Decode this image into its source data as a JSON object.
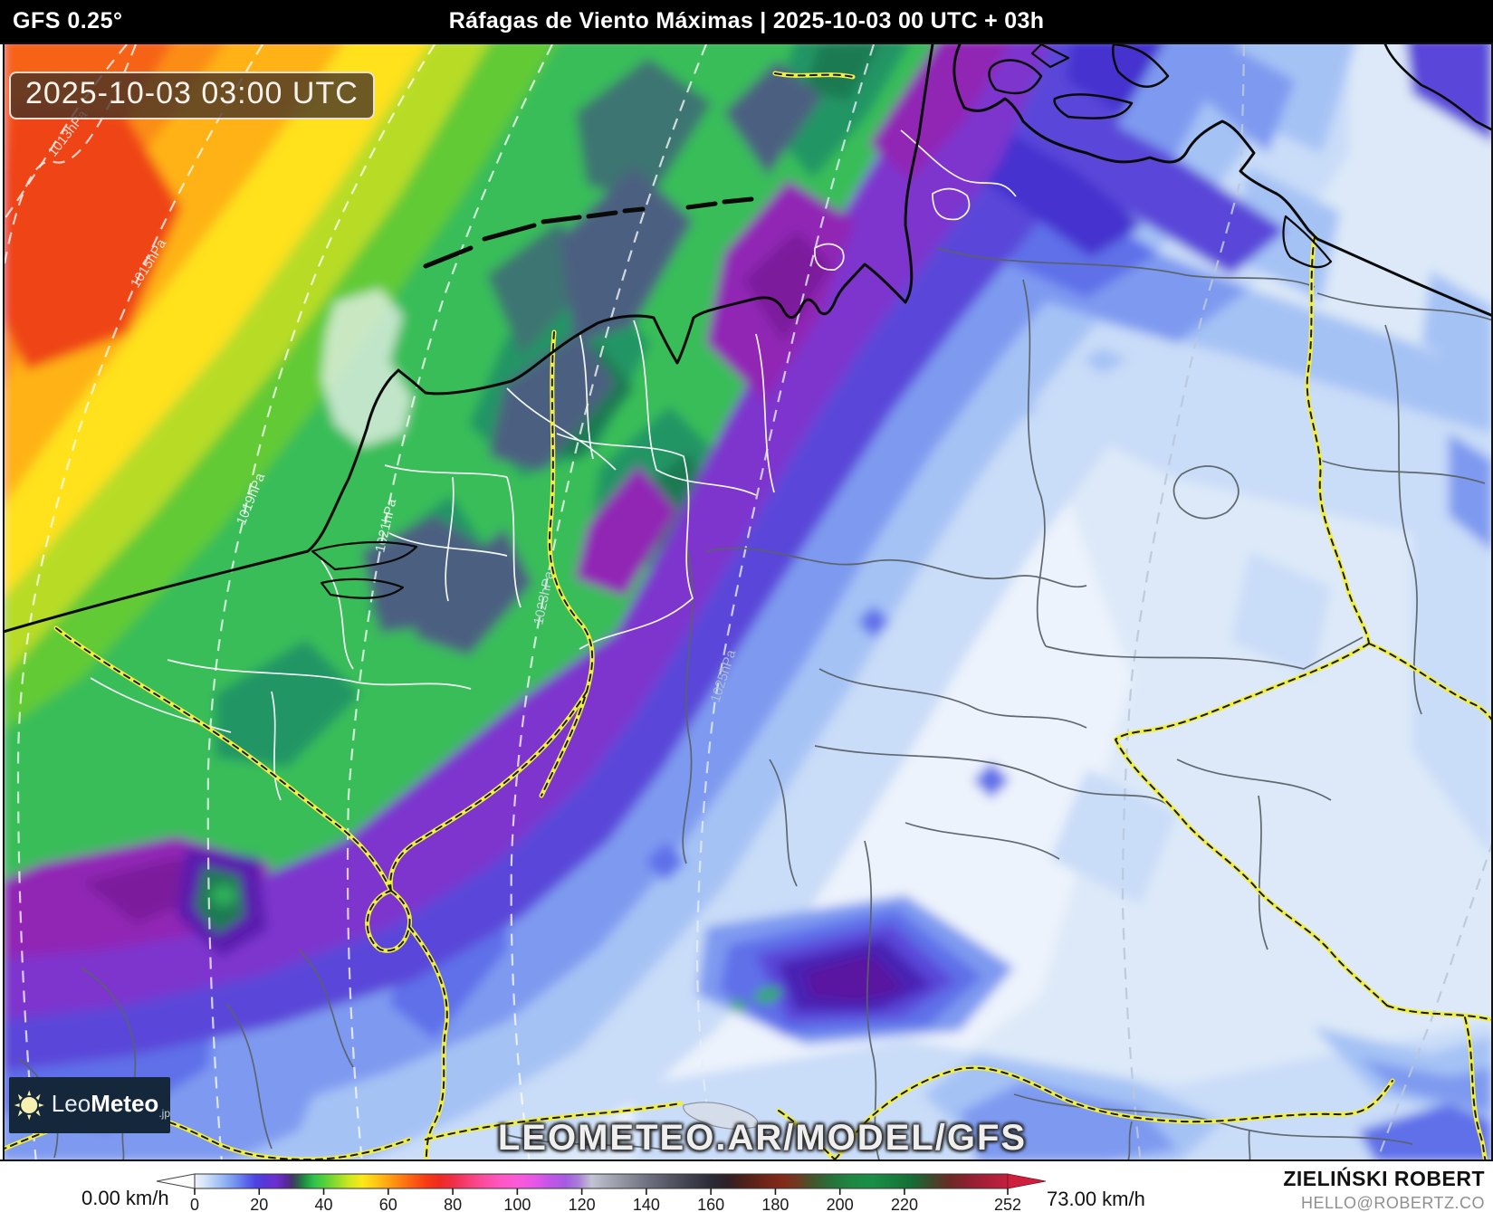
{
  "header": {
    "model": "GFS 0.25°",
    "title": "Ráfagas de Viento Máximas | 2025-10-03 00 UTC + 03h"
  },
  "map": {
    "timestamp": "2025-10-03 03:00 UTC",
    "watermark": "LEOMETEO.AR/MODEL/GFS",
    "isobar_labels": [
      "1013hPa",
      "1015hPa",
      "1019hPa",
      "1021hPa",
      "1023hPa",
      "1025hPa"
    ]
  },
  "logo": {
    "light": "Leo",
    "bold": "Meteo",
    "suffix": "jp"
  },
  "colorbar": {
    "min_label": "0.00 km/h",
    "max_label": "73.00 km/h",
    "unit": "km/h",
    "max_value": 252,
    "ticks": [
      0,
      20,
      40,
      60,
      80,
      100,
      120,
      140,
      160,
      180,
      200,
      220,
      252
    ],
    "gradient": [
      {
        "v": 0,
        "c": "#eef3fb"
      },
      {
        "v": 3,
        "c": "#d7e4f8"
      },
      {
        "v": 6,
        "c": "#b6cdf5"
      },
      {
        "v": 10,
        "c": "#8aacf2"
      },
      {
        "v": 13,
        "c": "#6f8df0"
      },
      {
        "v": 16,
        "c": "#5b66ec"
      },
      {
        "v": 19,
        "c": "#4b43e1"
      },
      {
        "v": 22,
        "c": "#5a35d8"
      },
      {
        "v": 25,
        "c": "#6d2fcf"
      },
      {
        "v": 28,
        "c": "#5c28a8"
      },
      {
        "v": 30,
        "c": "#46336e"
      },
      {
        "v": 32,
        "c": "#2f5c4e"
      },
      {
        "v": 34,
        "c": "#1f8f41"
      },
      {
        "v": 37,
        "c": "#2fc24c"
      },
      {
        "v": 40,
        "c": "#52cf3a"
      },
      {
        "v": 44,
        "c": "#8edc2c"
      },
      {
        "v": 48,
        "c": "#cfe81f"
      },
      {
        "v": 52,
        "c": "#fce819"
      },
      {
        "v": 56,
        "c": "#ffc915"
      },
      {
        "v": 60,
        "c": "#ffa313"
      },
      {
        "v": 64,
        "c": "#ff7d11"
      },
      {
        "v": 68,
        "c": "#fb5a12"
      },
      {
        "v": 72,
        "c": "#f63a14"
      },
      {
        "v": 76,
        "c": "#ef2a22"
      },
      {
        "v": 80,
        "c": "#f02e47"
      },
      {
        "v": 85,
        "c": "#f73f77"
      },
      {
        "v": 90,
        "c": "#fc4da1"
      },
      {
        "v": 95,
        "c": "#ff57c3"
      },
      {
        "v": 100,
        "c": "#fb5ad7"
      },
      {
        "v": 105,
        "c": "#e956e5"
      },
      {
        "v": 110,
        "c": "#c155e8"
      },
      {
        "v": 115,
        "c": "#a55ce3"
      },
      {
        "v": 119,
        "c": "#a97fd6"
      },
      {
        "v": 123,
        "c": "#c2c3d4"
      },
      {
        "v": 128,
        "c": "#a9aab8"
      },
      {
        "v": 134,
        "c": "#8d8e9c"
      },
      {
        "v": 140,
        "c": "#717281"
      },
      {
        "v": 147,
        "c": "#565766"
      },
      {
        "v": 154,
        "c": "#3e3f4c"
      },
      {
        "v": 160,
        "c": "#2b2c37"
      },
      {
        "v": 165,
        "c": "#302028"
      },
      {
        "v": 170,
        "c": "#4a211b"
      },
      {
        "v": 176,
        "c": "#6b2418"
      },
      {
        "v": 182,
        "c": "#84291a"
      },
      {
        "v": 187,
        "c": "#6e3a22"
      },
      {
        "v": 192,
        "c": "#40582c"
      },
      {
        "v": 197,
        "c": "#287038"
      },
      {
        "v": 203,
        "c": "#1d8742"
      },
      {
        "v": 210,
        "c": "#1a8f45"
      },
      {
        "v": 216,
        "c": "#177f3d"
      },
      {
        "v": 222,
        "c": "#146f35"
      },
      {
        "v": 228,
        "c": "#3d4a2c"
      },
      {
        "v": 234,
        "c": "#6b2a26"
      },
      {
        "v": 240,
        "c": "#8f2030"
      },
      {
        "v": 246,
        "c": "#ab1f38"
      },
      {
        "v": 252,
        "c": "#c22040"
      }
    ]
  },
  "credit": {
    "name": "ZIELIŃSKI ROBERT",
    "email": "HELLO@ROBERTZ.CO"
  }
}
